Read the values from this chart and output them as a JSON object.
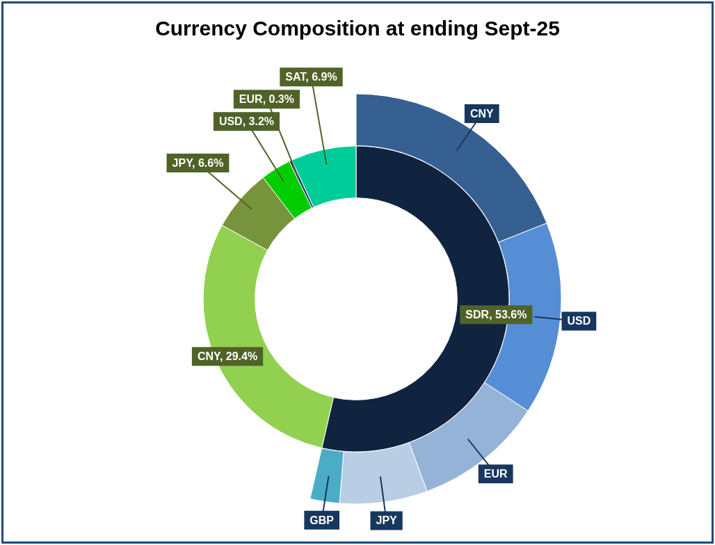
{
  "chart_data": [
    {
      "type": "donut",
      "title": "Currency Composition at ending Sept-25",
      "categories": [
        "SDR",
        "CNY",
        "JPY",
        "USD",
        "EUR",
        "SAT"
      ],
      "values": [
        53.6,
        29.4,
        6.6,
        3.2,
        0.3,
        6.9
      ],
      "value_labels": [
        "53.6%",
        "29.4%",
        "6.6%",
        "3.2%",
        "0.3%",
        "6.9%"
      ],
      "colors": [
        "#10243f",
        "#92d050",
        "#77933c",
        "#00cc00",
        "#17375e",
        "#00cc99"
      ]
    },
    {
      "type": "donut",
      "categories": [
        "CNY",
        "USD",
        "EUR",
        "JPY",
        "GBP"
      ],
      "values": [
        35.4,
        28.4,
        19.0,
        12.9,
        4.3
      ],
      "colors": [
        "#376092",
        "#558ed5",
        "#95b3d7",
        "#b9cde5",
        "#4bacc6"
      ]
    }
  ]
}
